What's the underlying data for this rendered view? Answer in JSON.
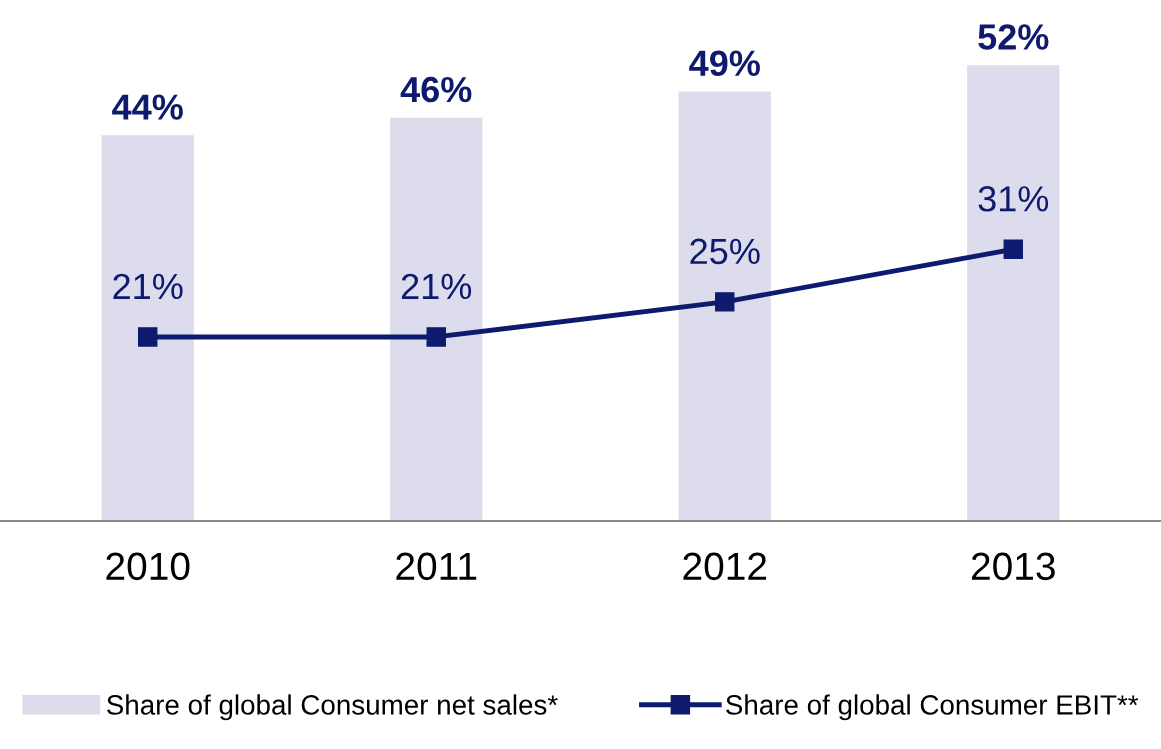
{
  "chart_data": {
    "type": "bar",
    "categories": [
      "2010",
      "2011",
      "2012",
      "2013"
    ],
    "series": [
      {
        "name": "Share of global Consumer net sales*",
        "color": "#dcdcec",
        "values": [
          44,
          46,
          49,
          52
        ],
        "value_labels": [
          "44%",
          "46%",
          "49%",
          "52%"
        ]
      },
      {
        "name": "Share of global Consumer EBIT**",
        "type": "line",
        "color": "#0d1a6e",
        "values": [
          21,
          21,
          25,
          31
        ],
        "value_labels": [
          "21%",
          "21%",
          "25%",
          "31%"
        ]
      }
    ],
    "tick_labels": "x",
    "legend": "bottom",
    "marker": "square",
    "line_style": "solid",
    "grid": false
  }
}
